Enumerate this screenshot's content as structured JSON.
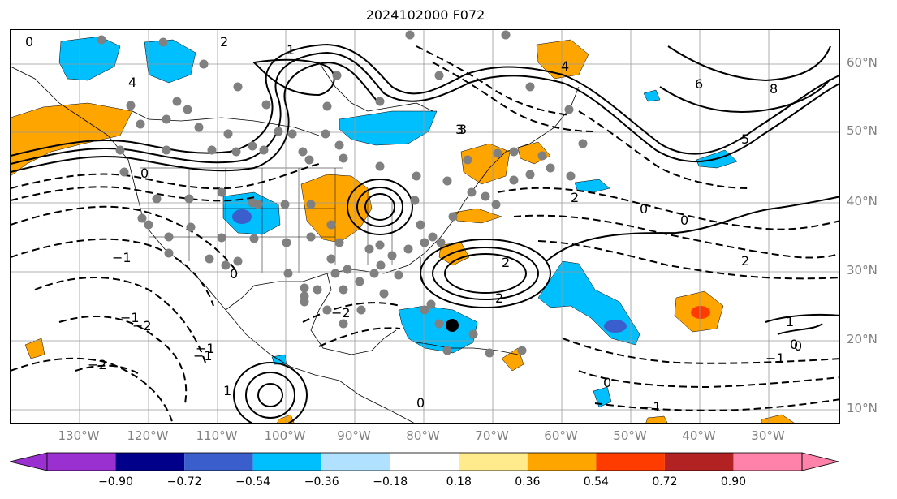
{
  "title": "2024102000 F072",
  "latitude_labels": [
    "60°N",
    "50°N",
    "40°N",
    "30°N",
    "20°N",
    "10°N"
  ],
  "longitude_labels": [
    "130°W",
    "120°W",
    "110°W",
    "100°W",
    "90°W",
    "80°W",
    "70°W",
    "60°W",
    "50°W",
    "40°W",
    "30°W"
  ],
  "colorbar": {
    "tick_labels": [
      "−0.90",
      "−0.72",
      "−0.54",
      "−0.36",
      "−0.18",
      "0.18",
      "0.36",
      "0.54",
      "0.72",
      "0.90"
    ],
    "colors": [
      "#9b30d0",
      "#00008b",
      "#3a5fcd",
      "#00bfff",
      "#b0e2ff",
      "#ffffff",
      "#ffeb8c",
      "#ffa500",
      "#ff3c00",
      "#b22222",
      "#ff82ab"
    ]
  },
  "contour_labels": [
    "0",
    "1",
    "2",
    "3",
    "4",
    "5",
    "6",
    "8",
    "−1",
    "−2",
    "0",
    "−1",
    "2",
    "0",
    "−1",
    "0",
    "1",
    "−2",
    "3",
    "0",
    "−1",
    "4",
    "2",
    "0",
    "−1",
    "2",
    "0",
    "−2",
    "1",
    "0",
    "−1",
    "0",
    "2"
  ],
  "colors": {
    "orange": "#ffa500",
    "cyan": "#00bfff",
    "blue": "#3a5fcd",
    "red": "#ff3c00",
    "station_gray": "#808080",
    "storm_marker": "#000000"
  }
}
